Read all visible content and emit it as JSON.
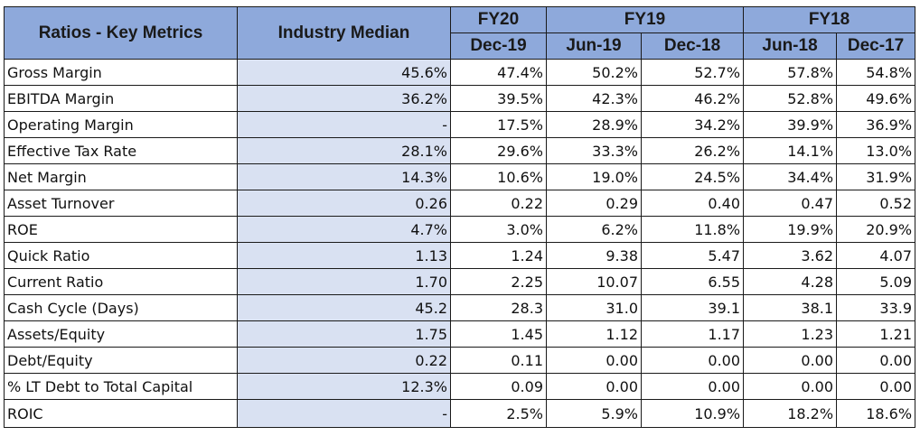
{
  "header": {
    "metric_label": "Ratios - Key Metrics",
    "median_label": "Industry Median",
    "groups": [
      {
        "label": "FY20",
        "span": 1
      },
      {
        "label": "FY19",
        "span": 2
      },
      {
        "label": "FY18",
        "span": 2
      }
    ],
    "periods": [
      "Dec-19",
      "Jun-19",
      "Dec-18",
      "Jun-18",
      "Dec-17"
    ]
  },
  "rows": [
    {
      "metric": "Gross Margin",
      "median": "45.6%",
      "values": [
        "47.4%",
        "50.2%",
        "52.7%",
        "57.8%",
        "54.8%"
      ]
    },
    {
      "metric": "EBITDA Margin",
      "median": "36.2%",
      "values": [
        "39.5%",
        "42.3%",
        "46.2%",
        "52.8%",
        "49.6%"
      ]
    },
    {
      "metric": "Operating Margin",
      "median": "-",
      "values": [
        "17.5%",
        "28.9%",
        "34.2%",
        "39.9%",
        "36.9%"
      ]
    },
    {
      "metric": "Effective Tax Rate",
      "median": "28.1%",
      "values": [
        "29.6%",
        "33.3%",
        "26.2%",
        "14.1%",
        "13.0%"
      ]
    },
    {
      "metric": "Net Margin",
      "median": "14.3%",
      "values": [
        "10.6%",
        "19.0%",
        "24.5%",
        "34.4%",
        "31.9%"
      ]
    },
    {
      "metric": "Asset Turnover",
      "median": "0.26",
      "values": [
        "0.22",
        "0.29",
        "0.40",
        "0.47",
        "0.52"
      ]
    },
    {
      "metric": "ROE",
      "median": "4.7%",
      "values": [
        "3.0%",
        "6.2%",
        "11.8%",
        "19.9%",
        "20.9%"
      ]
    },
    {
      "metric": "Quick Ratio",
      "median": "1.13",
      "values": [
        "1.24",
        "9.38",
        "5.47",
        "3.62",
        "4.07"
      ]
    },
    {
      "metric": "Current Ratio",
      "median": "1.70",
      "values": [
        "2.25",
        "10.07",
        "6.55",
        "4.28",
        "5.09"
      ]
    },
    {
      "metric": "Cash Cycle (Days)",
      "median": "45.2",
      "values": [
        "28.3",
        "31.0",
        "39.1",
        "38.1",
        "33.9"
      ]
    },
    {
      "metric": "Assets/Equity",
      "median": "1.75",
      "values": [
        "1.45",
        "1.12",
        "1.17",
        "1.23",
        "1.21"
      ]
    },
    {
      "metric": "Debt/Equity",
      "median": "0.22",
      "values": [
        "0.11",
        "0.00",
        "0.00",
        "0.00",
        "0.00"
      ]
    },
    {
      "metric": "% LT Debt to Total Capital",
      "median": "12.3%",
      "values": [
        "0.09",
        "0.00",
        "0.00",
        "0.00",
        "0.00"
      ]
    },
    {
      "metric": "ROIC",
      "median": "-",
      "values": [
        "2.5%",
        "5.9%",
        "10.9%",
        "18.2%",
        "18.6%"
      ]
    }
  ],
  "colors": {
    "header_bg": "#8ea9db",
    "median_bg": "#d9e1f2",
    "border": "#1a1a1a"
  }
}
